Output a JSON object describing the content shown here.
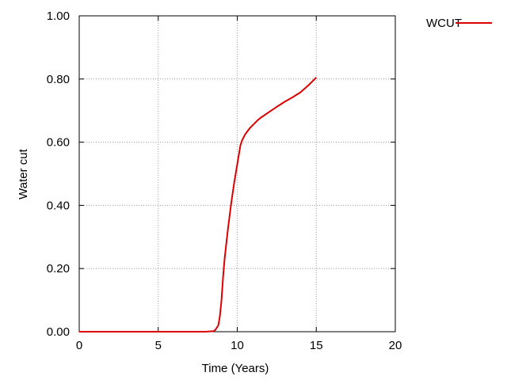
{
  "chart_data": {
    "type": "line",
    "title": "",
    "xlabel": "Time (Years)",
    "ylabel": "Water cut",
    "xlim": [
      0,
      20
    ],
    "ylim": [
      0,
      1
    ],
    "x_ticks": [
      "0",
      "5",
      "10",
      "15",
      "20"
    ],
    "y_ticks": [
      "0.00",
      "0.20",
      "0.40",
      "0.60",
      "0.80",
      "1.00"
    ],
    "grid": true,
    "legend_position": "top-right, outside plot",
    "series": [
      {
        "name": "WCUT",
        "color": "#dd0000",
        "x": [
          0,
          2,
          4,
          6,
          8,
          8.5,
          8.6,
          8.8,
          8.9,
          9.0,
          9.1,
          9.2,
          9.4,
          9.6,
          9.8,
          10.0,
          10.1,
          10.2,
          10.3,
          10.5,
          10.8,
          11.0,
          11.3,
          11.5,
          12.0,
          12.5,
          13.0,
          13.5,
          14.0,
          14.5,
          15.0
        ],
        "y": [
          0,
          0,
          0,
          0,
          0,
          0.002,
          0.005,
          0.02,
          0.05,
          0.1,
          0.17,
          0.23,
          0.32,
          0.4,
          0.47,
          0.53,
          0.56,
          0.59,
          0.605,
          0.625,
          0.645,
          0.655,
          0.67,
          0.678,
          0.695,
          0.712,
          0.728,
          0.742,
          0.758,
          0.78,
          0.805
        ]
      }
    ]
  }
}
